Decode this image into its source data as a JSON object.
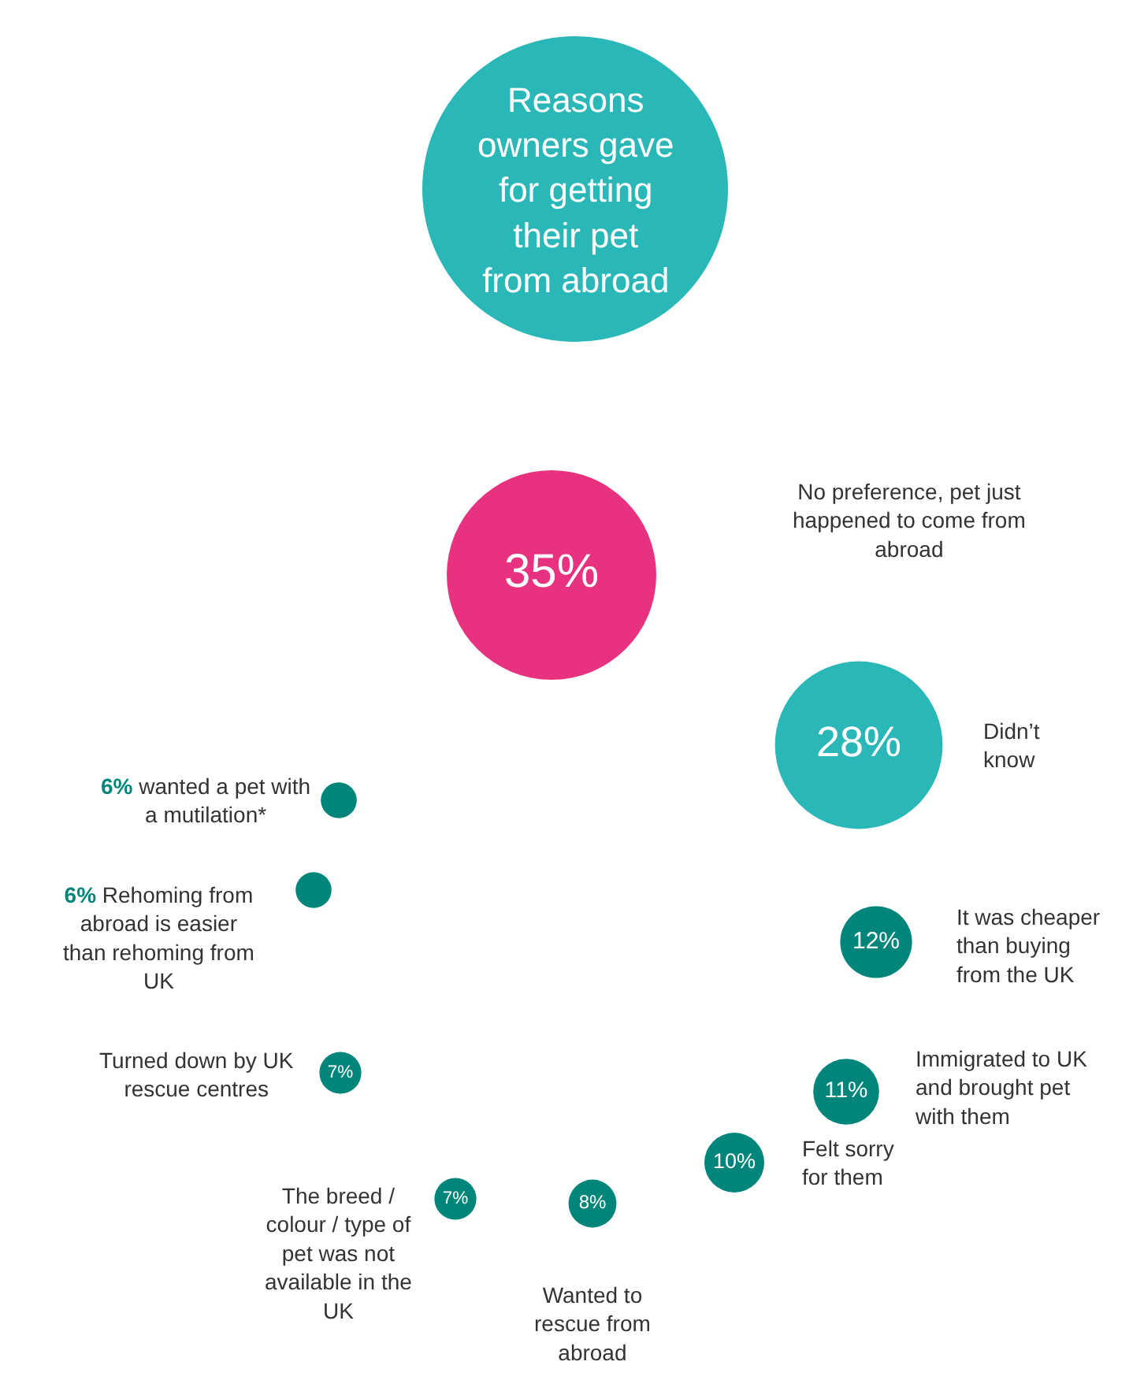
{
  "chart_data": {
    "type": "other",
    "title": "Reasons owners gave for getting their pet from abroad",
    "categories": [
      "No preference, pet just happened to come from abroad",
      "Didn’t know",
      "It was cheaper than buying from the UK",
      "Immigrated to UK and brought pet with them",
      "Felt sorry for them",
      "Wanted to rescue from abroad",
      "The breed / colour / type of pet was not available in the UK",
      "Turned down by UK rescue centres",
      "Rehoming from abroad is easier than rehoming from UK",
      "wanted a pet with a mutilation*"
    ],
    "values": [
      35,
      28,
      12,
      11,
      10,
      8,
      7,
      7,
      6,
      6
    ],
    "value_labels": [
      "35%",
      "28%",
      "12%",
      "11%",
      "10%",
      "8%",
      "7%",
      "7%",
      "6%",
      "6%"
    ],
    "colors": [
      "#e8317f",
      "#2ab7b8",
      "#00857a",
      "#00857a",
      "#00857a",
      "#00857a",
      "#00857a",
      "#00857a",
      "#00857a",
      "#00857a"
    ]
  }
}
